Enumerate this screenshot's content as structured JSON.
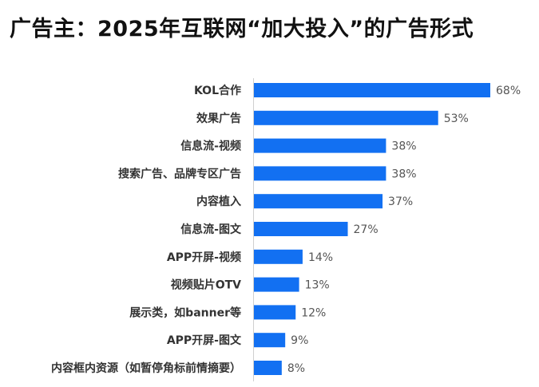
{
  "chart_data": {
    "type": "bar",
    "orientation": "horizontal",
    "title": "广告主：2025年互联网“加大投入”的广告形式",
    "categories": [
      "KOL合作",
      "效果广告",
      "信息流-视频",
      "搜索广告、品牌专区广告",
      "内容植入",
      "信息流-图文",
      "APP开屏-视频",
      "视频贴片OTV",
      "展示类，如banner等",
      "APP开屏-图文",
      "内容框内资源（如暂停角标前情摘要）"
    ],
    "values": [
      68,
      53,
      38,
      38,
      37,
      27,
      14,
      13,
      12,
      9,
      8
    ],
    "value_labels": [
      "68%",
      "53%",
      "38%",
      "38%",
      "37%",
      "27%",
      "14%",
      "13%",
      "12%",
      "9%",
      "8%"
    ],
    "unit": "%",
    "xlabel": "",
    "ylabel": "",
    "xlim": [
      0,
      68
    ],
    "grid": false,
    "bar_color": "#1270F2"
  }
}
